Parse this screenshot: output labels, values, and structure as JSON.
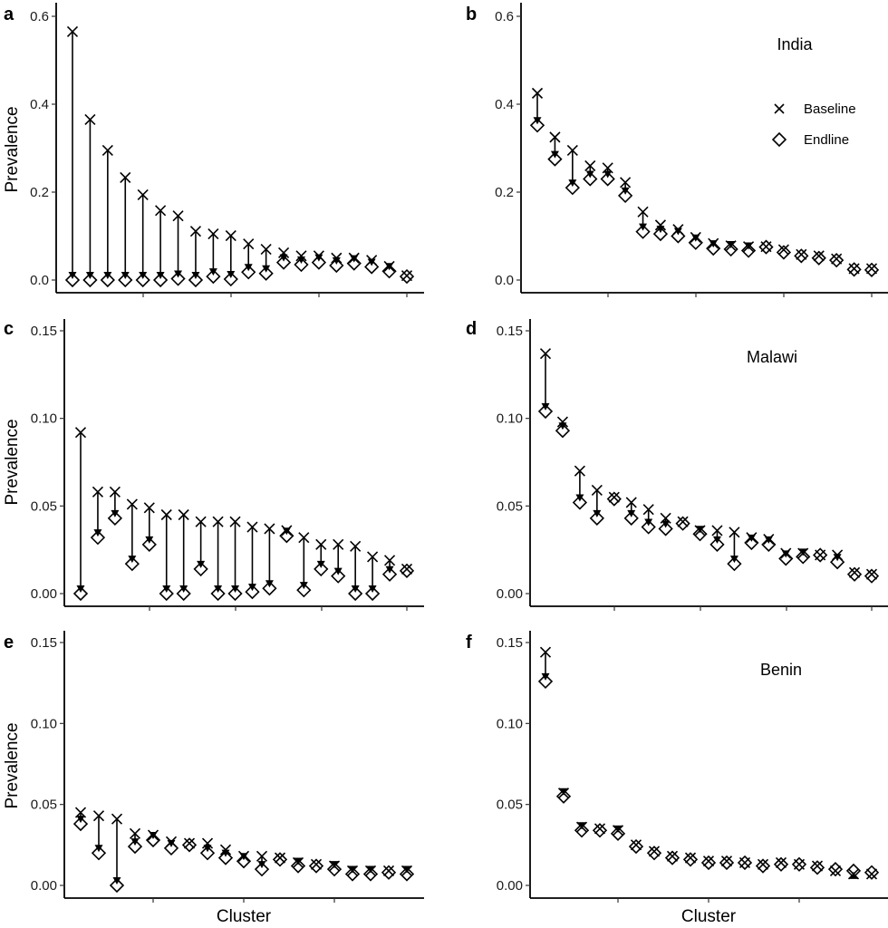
{
  "figure": {
    "legend": {
      "baseline_label": "Baseline",
      "endline_label": "Endline",
      "baseline_marker": "x-cross",
      "endline_marker": "open-diamond"
    }
  },
  "chart_data": [
    {
      "id": "a",
      "type": "scatter",
      "panel_letter": "a",
      "title": "",
      "xlabel": "",
      "ylabel": "Prevalence",
      "ylim": [
        0,
        0.6
      ],
      "yticks": [
        0.0,
        0.2,
        0.4,
        0.6
      ],
      "ytick_labels": [
        "0.0",
        "0.2",
        "0.4",
        "0.6"
      ],
      "xtick_count": 4,
      "grid": false,
      "series": [
        {
          "name": "Baseline",
          "values": [
            0.565,
            0.365,
            0.295,
            0.233,
            0.194,
            0.158,
            0.146,
            0.111,
            0.105,
            0.101,
            0.082,
            0.07,
            0.062,
            0.055,
            0.055,
            0.05,
            0.05,
            0.045,
            0.031,
            0.01
          ]
        },
        {
          "name": "Endline",
          "values": [
            0.0,
            0.0,
            0.0,
            0.0,
            0.0,
            0.0,
            0.003,
            0.0,
            0.008,
            0.002,
            0.018,
            0.015,
            0.04,
            0.035,
            0.04,
            0.033,
            0.038,
            0.03,
            0.02,
            0.008
          ]
        }
      ]
    },
    {
      "id": "b",
      "type": "scatter",
      "panel_letter": "b",
      "title": "India",
      "xlabel": "",
      "ylabel": "",
      "ylim": [
        0,
        0.6
      ],
      "yticks": [
        0.0,
        0.2,
        0.4,
        0.6
      ],
      "ytick_labels": [
        "0.0",
        "0.2",
        "0.4",
        "0.6"
      ],
      "xtick_count": 4,
      "grid": false,
      "legend_position": "top-right",
      "series": [
        {
          "name": "Baseline",
          "values": [
            0.425,
            0.325,
            0.295,
            0.26,
            0.255,
            0.222,
            0.155,
            0.125,
            0.115,
            0.097,
            0.083,
            0.078,
            0.076,
            0.076,
            0.069,
            0.058,
            0.055,
            0.048,
            0.026,
            0.026
          ]
        },
        {
          "name": "Endline",
          "values": [
            0.352,
            0.275,
            0.21,
            0.23,
            0.23,
            0.192,
            0.11,
            0.105,
            0.1,
            0.085,
            0.072,
            0.07,
            0.067,
            0.075,
            0.063,
            0.055,
            0.05,
            0.045,
            0.024,
            0.023
          ]
        }
      ]
    },
    {
      "id": "c",
      "type": "scatter",
      "panel_letter": "c",
      "title": "",
      "xlabel": "",
      "ylabel": "Prevalence",
      "ylim": [
        0,
        0.15
      ],
      "yticks": [
        0.0,
        0.05,
        0.1,
        0.15
      ],
      "ytick_labels": [
        "0.00",
        "0.05",
        "0.10",
        "0.15"
      ],
      "xtick_count": 4,
      "grid": false,
      "series": [
        {
          "name": "Baseline",
          "values": [
            0.092,
            0.058,
            0.058,
            0.051,
            0.049,
            0.045,
            0.045,
            0.041,
            0.041,
            0.041,
            0.038,
            0.037,
            0.036,
            0.032,
            0.028,
            0.028,
            0.027,
            0.021,
            0.019,
            0.014
          ]
        },
        {
          "name": "Endline",
          "values": [
            0.0,
            0.032,
            0.043,
            0.017,
            0.028,
            0.0,
            0.0,
            0.014,
            0.0,
            0.0,
            0.001,
            0.003,
            0.033,
            0.002,
            0.014,
            0.01,
            0.0,
            0.0,
            0.011,
            0.013
          ]
        }
      ]
    },
    {
      "id": "d",
      "type": "scatter",
      "panel_letter": "d",
      "title": "Malawi",
      "xlabel": "",
      "ylabel": "",
      "ylim": [
        0,
        0.15
      ],
      "yticks": [
        0.0,
        0.05,
        0.1,
        0.15
      ],
      "ytick_labels": [
        "0.00",
        "0.05",
        "0.10",
        "0.15"
      ],
      "xtick_count": 4,
      "grid": false,
      "series": [
        {
          "name": "Baseline",
          "values": [
            0.137,
            0.098,
            0.07,
            0.059,
            0.055,
            0.052,
            0.048,
            0.043,
            0.041,
            0.036,
            0.036,
            0.035,
            0.032,
            0.031,
            0.023,
            0.023,
            0.022,
            0.022,
            0.012,
            0.011
          ]
        },
        {
          "name": "Endline",
          "values": [
            0.104,
            0.093,
            0.052,
            0.043,
            0.054,
            0.043,
            0.038,
            0.037,
            0.04,
            0.034,
            0.028,
            0.017,
            0.029,
            0.028,
            0.02,
            0.021,
            0.022,
            0.018,
            0.011,
            0.01
          ]
        }
      ]
    },
    {
      "id": "e",
      "type": "scatter",
      "panel_letter": "e",
      "title": "",
      "xlabel": "Cluster",
      "ylabel": "Prevalence",
      "ylim": [
        0,
        0.15
      ],
      "yticks": [
        0.0,
        0.05,
        0.1,
        0.15
      ],
      "ytick_labels": [
        "0.00",
        "0.05",
        "0.10",
        "0.15"
      ],
      "xtick_count": 3,
      "grid": false,
      "series": [
        {
          "name": "Baseline",
          "values": [
            0.045,
            0.043,
            0.041,
            0.032,
            0.031,
            0.027,
            0.026,
            0.026,
            0.022,
            0.018,
            0.018,
            0.017,
            0.014,
            0.013,
            0.012,
            0.009,
            0.009,
            0.009,
            0.009
          ]
        },
        {
          "name": "Endline",
          "values": [
            0.038,
            0.02,
            0.0,
            0.024,
            0.028,
            0.023,
            0.025,
            0.02,
            0.017,
            0.015,
            0.01,
            0.016,
            0.012,
            0.012,
            0.01,
            0.007,
            0.007,
            0.008,
            0.007
          ]
        }
      ]
    },
    {
      "id": "f",
      "type": "scatter",
      "panel_letter": "f",
      "title": "Benin",
      "xlabel": "Cluster",
      "ylabel": "",
      "ylim": [
        0,
        0.15
      ],
      "yticks": [
        0.0,
        0.05,
        0.1,
        0.15
      ],
      "ytick_labels": [
        "0.00",
        "0.05",
        "0.10",
        "0.15"
      ],
      "xtick_count": 3,
      "grid": false,
      "series": [
        {
          "name": "Baseline",
          "values": [
            0.144,
            0.057,
            0.036,
            0.035,
            0.034,
            0.025,
            0.021,
            0.018,
            0.017,
            0.015,
            0.015,
            0.014,
            0.013,
            0.014,
            0.013,
            0.012,
            0.009,
            0.007,
            0.007
          ]
        },
        {
          "name": "Endline",
          "values": [
            0.126,
            0.055,
            0.034,
            0.034,
            0.032,
            0.024,
            0.02,
            0.017,
            0.016,
            0.014,
            0.014,
            0.014,
            0.012,
            0.013,
            0.013,
            0.011,
            0.01,
            0.009,
            0.008
          ]
        }
      ]
    }
  ]
}
